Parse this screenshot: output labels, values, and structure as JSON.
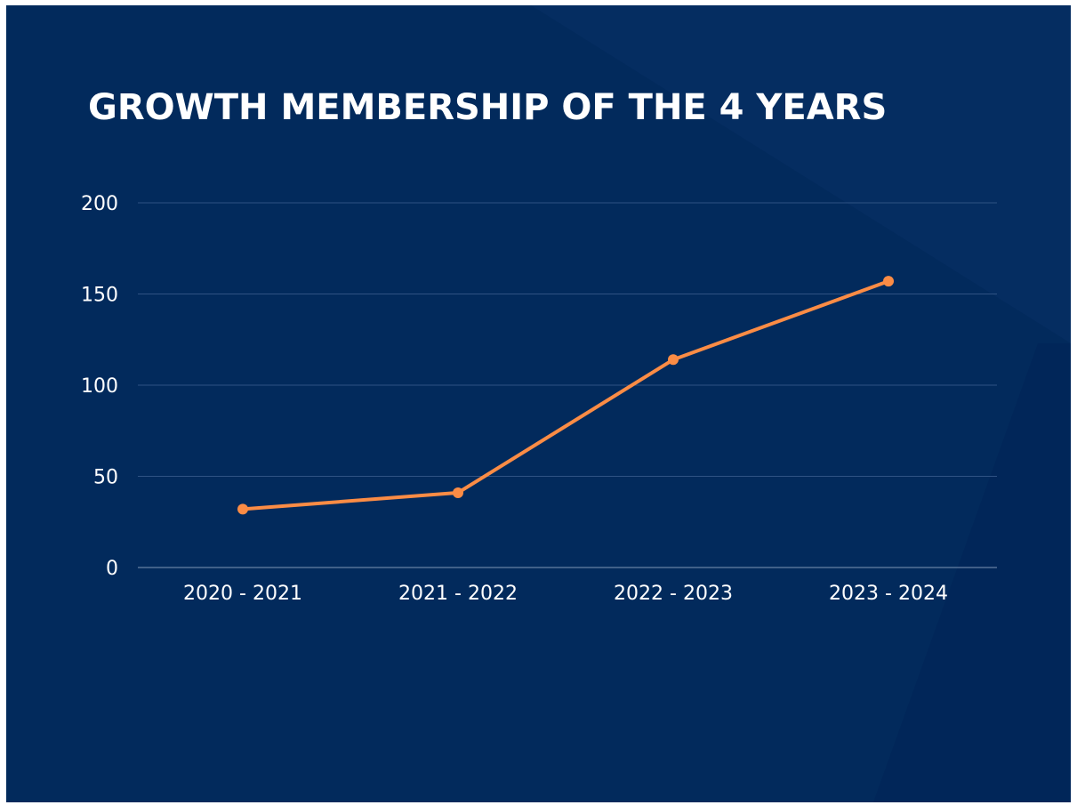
{
  "chart_data": {
    "type": "line",
    "title": "GROWTH MEMBERSHIP OF THE 4 YEARS",
    "categories": [
      "2020 - 2021",
      "2021 - 2022",
      "2022 - 2023",
      "2023 - 2024"
    ],
    "series": [
      {
        "values": [
          32,
          41,
          114,
          157
        ]
      }
    ],
    "yticks": [
      "0",
      "50",
      "100",
      "150",
      "200"
    ],
    "ylim": [
      0,
      200
    ],
    "xlabel": "",
    "ylabel": "",
    "grid": true,
    "legend": "none"
  },
  "colors": {
    "background": "#022a5c",
    "line": "#fb8c45",
    "gridline": "#2f5283",
    "text": "#ffffff"
  }
}
